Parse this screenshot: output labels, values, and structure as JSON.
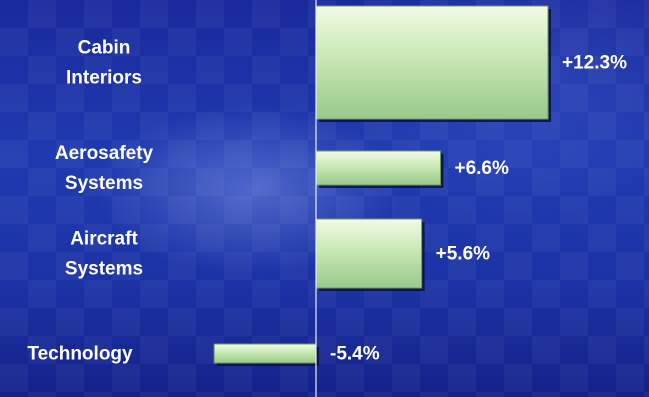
{
  "chart_data": {
    "type": "bar",
    "orientation": "horizontal",
    "categories": [
      [
        "Cabin",
        "Interiors"
      ],
      [
        "Aerosafety",
        "Systems"
      ],
      [
        "Aircraft",
        "Systems"
      ],
      [
        "Technology"
      ]
    ],
    "values": [
      12.3,
      6.6,
      5.6,
      -5.4
    ],
    "value_labels": [
      "+12.3%",
      "+6.6%",
      "+5.6%",
      "-5.4%"
    ],
    "title": "",
    "xlabel": "",
    "ylabel": "",
    "xlim": [
      -5.4,
      12.3
    ],
    "grid": false,
    "legend": "none",
    "colors": {
      "bar_light": "#f2fbe6",
      "bar_mid": "#c9e8b4",
      "bar_dark": "#98c98a",
      "bar_edge": "#6f9a63",
      "shadow": "#0a1040",
      "zero_line": "#e8ecff",
      "text": "#ffffff"
    }
  }
}
